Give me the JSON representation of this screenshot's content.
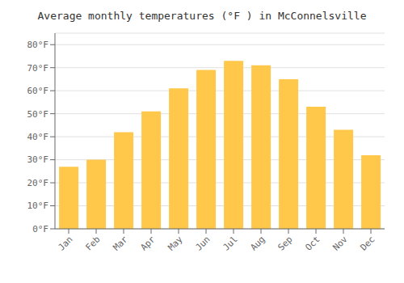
{
  "chart_data": {
    "type": "bar",
    "title": "Average monthly temperatures (°F ) in McConnelsville",
    "categories": [
      "Jan",
      "Feb",
      "Mar",
      "Apr",
      "May",
      "Jun",
      "Jul",
      "Aug",
      "Sep",
      "Oct",
      "Nov",
      "Dec"
    ],
    "values": [
      27,
      30,
      42,
      51,
      61,
      69,
      73,
      71,
      65,
      53,
      43,
      32
    ],
    "color": "#FFC84A",
    "ylim": [
      0,
      85
    ],
    "yticks": [
      {
        "value": 0,
        "label": "0°F"
      },
      {
        "value": 10,
        "label": "10°F"
      },
      {
        "value": 20,
        "label": "20°F"
      },
      {
        "value": 30,
        "label": "30°F"
      },
      {
        "value": 40,
        "label": "40°F"
      },
      {
        "value": 50,
        "label": "50°F"
      },
      {
        "value": 60,
        "label": "60°F"
      },
      {
        "value": 70,
        "label": "70°F"
      },
      {
        "value": 80,
        "label": "80°F"
      }
    ],
    "grid": true
  }
}
